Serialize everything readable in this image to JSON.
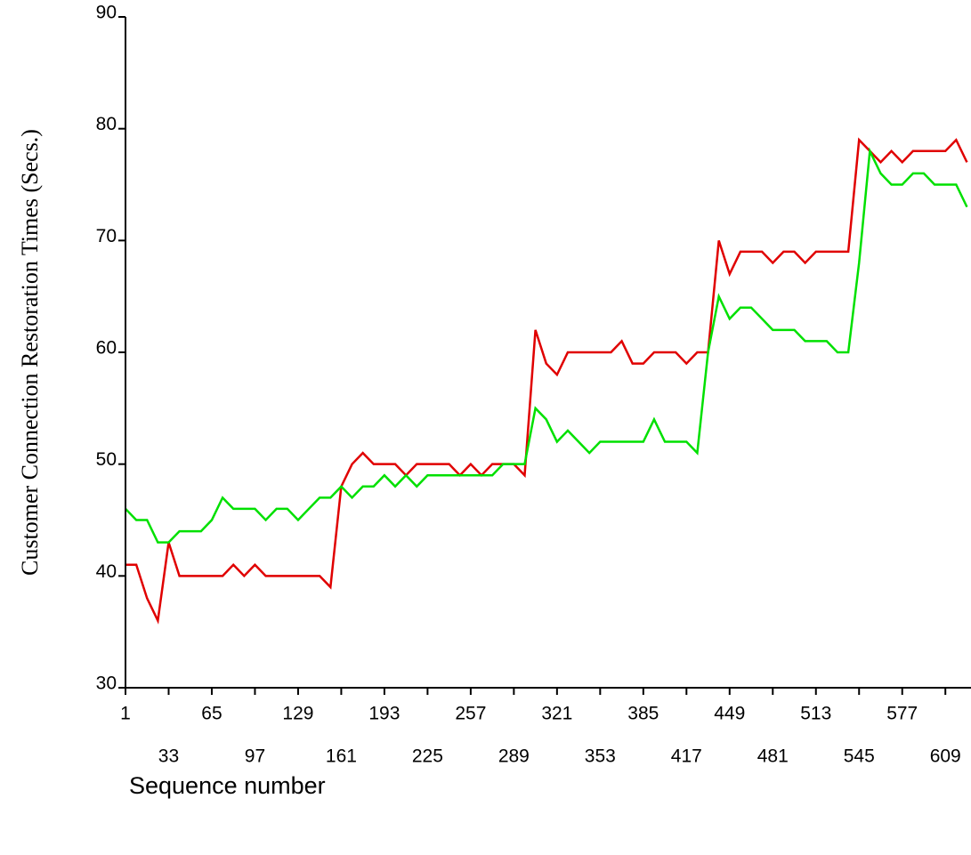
{
  "chart_data": {
    "type": "line",
    "x_label": "Sequence number",
    "y_label": "Customer Connection Restoration Times (Secs.)",
    "x": [
      1,
      9,
      17,
      25,
      33,
      41,
      49,
      57,
      65,
      73,
      81,
      89,
      97,
      105,
      113,
      121,
      129,
      137,
      145,
      153,
      161,
      169,
      177,
      185,
      193,
      201,
      209,
      217,
      225,
      233,
      241,
      249,
      257,
      265,
      273,
      281,
      289,
      297,
      305,
      313,
      321,
      329,
      337,
      345,
      353,
      361,
      369,
      377,
      385,
      393,
      401,
      409,
      417,
      425,
      433,
      441,
      449,
      457,
      465,
      473,
      481,
      489,
      497,
      505,
      513,
      521,
      529,
      537,
      545,
      553,
      561,
      569,
      577,
      585,
      593,
      601,
      609,
      617,
      625
    ],
    "series": [
      {
        "color": "#e00000",
        "values": [
          41,
          41,
          38,
          36,
          43,
          40,
          40,
          40,
          40,
          40,
          41,
          40,
          41,
          40,
          40,
          40,
          40,
          40,
          40,
          39,
          48,
          50,
          51,
          50,
          50,
          50,
          49,
          50,
          50,
          50,
          50,
          49,
          50,
          49,
          50,
          50,
          50,
          49,
          62,
          59,
          58,
          60,
          60,
          60,
          60,
          60,
          61,
          59,
          59,
          60,
          60,
          60,
          59,
          60,
          60,
          70,
          67,
          69,
          69,
          69,
          68,
          69,
          69,
          68,
          69,
          69,
          69,
          69,
          79,
          78,
          77,
          78,
          77,
          78,
          78,
          78,
          78,
          79,
          77
        ]
      },
      {
        "color": "#00e000",
        "values": [
          46,
          45,
          45,
          43,
          43,
          44,
          44,
          44,
          45,
          47,
          46,
          46,
          46,
          45,
          46,
          46,
          45,
          46,
          47,
          47,
          48,
          47,
          48,
          48,
          49,
          48,
          49,
          48,
          49,
          49,
          49,
          49,
          49,
          49,
          49,
          50,
          50,
          50,
          55,
          54,
          52,
          53,
          52,
          51,
          52,
          52,
          52,
          52,
          52,
          54,
          52,
          52,
          52,
          51,
          60,
          65,
          63,
          64,
          64,
          63,
          62,
          62,
          62,
          61,
          61,
          61,
          60,
          60,
          68,
          78,
          76,
          75,
          75,
          76,
          76,
          75,
          75,
          75,
          73
        ]
      }
    ],
    "xlim": [
      1,
      628
    ],
    "xticks": [
      1,
      33,
      65,
      97,
      129,
      161,
      193,
      225,
      257,
      289,
      321,
      353,
      385,
      417,
      449,
      481,
      513,
      545,
      577,
      609
    ],
    "ylim": [
      30,
      90
    ],
    "yticks": [
      30,
      40,
      50,
      60,
      70,
      80,
      90
    ]
  }
}
